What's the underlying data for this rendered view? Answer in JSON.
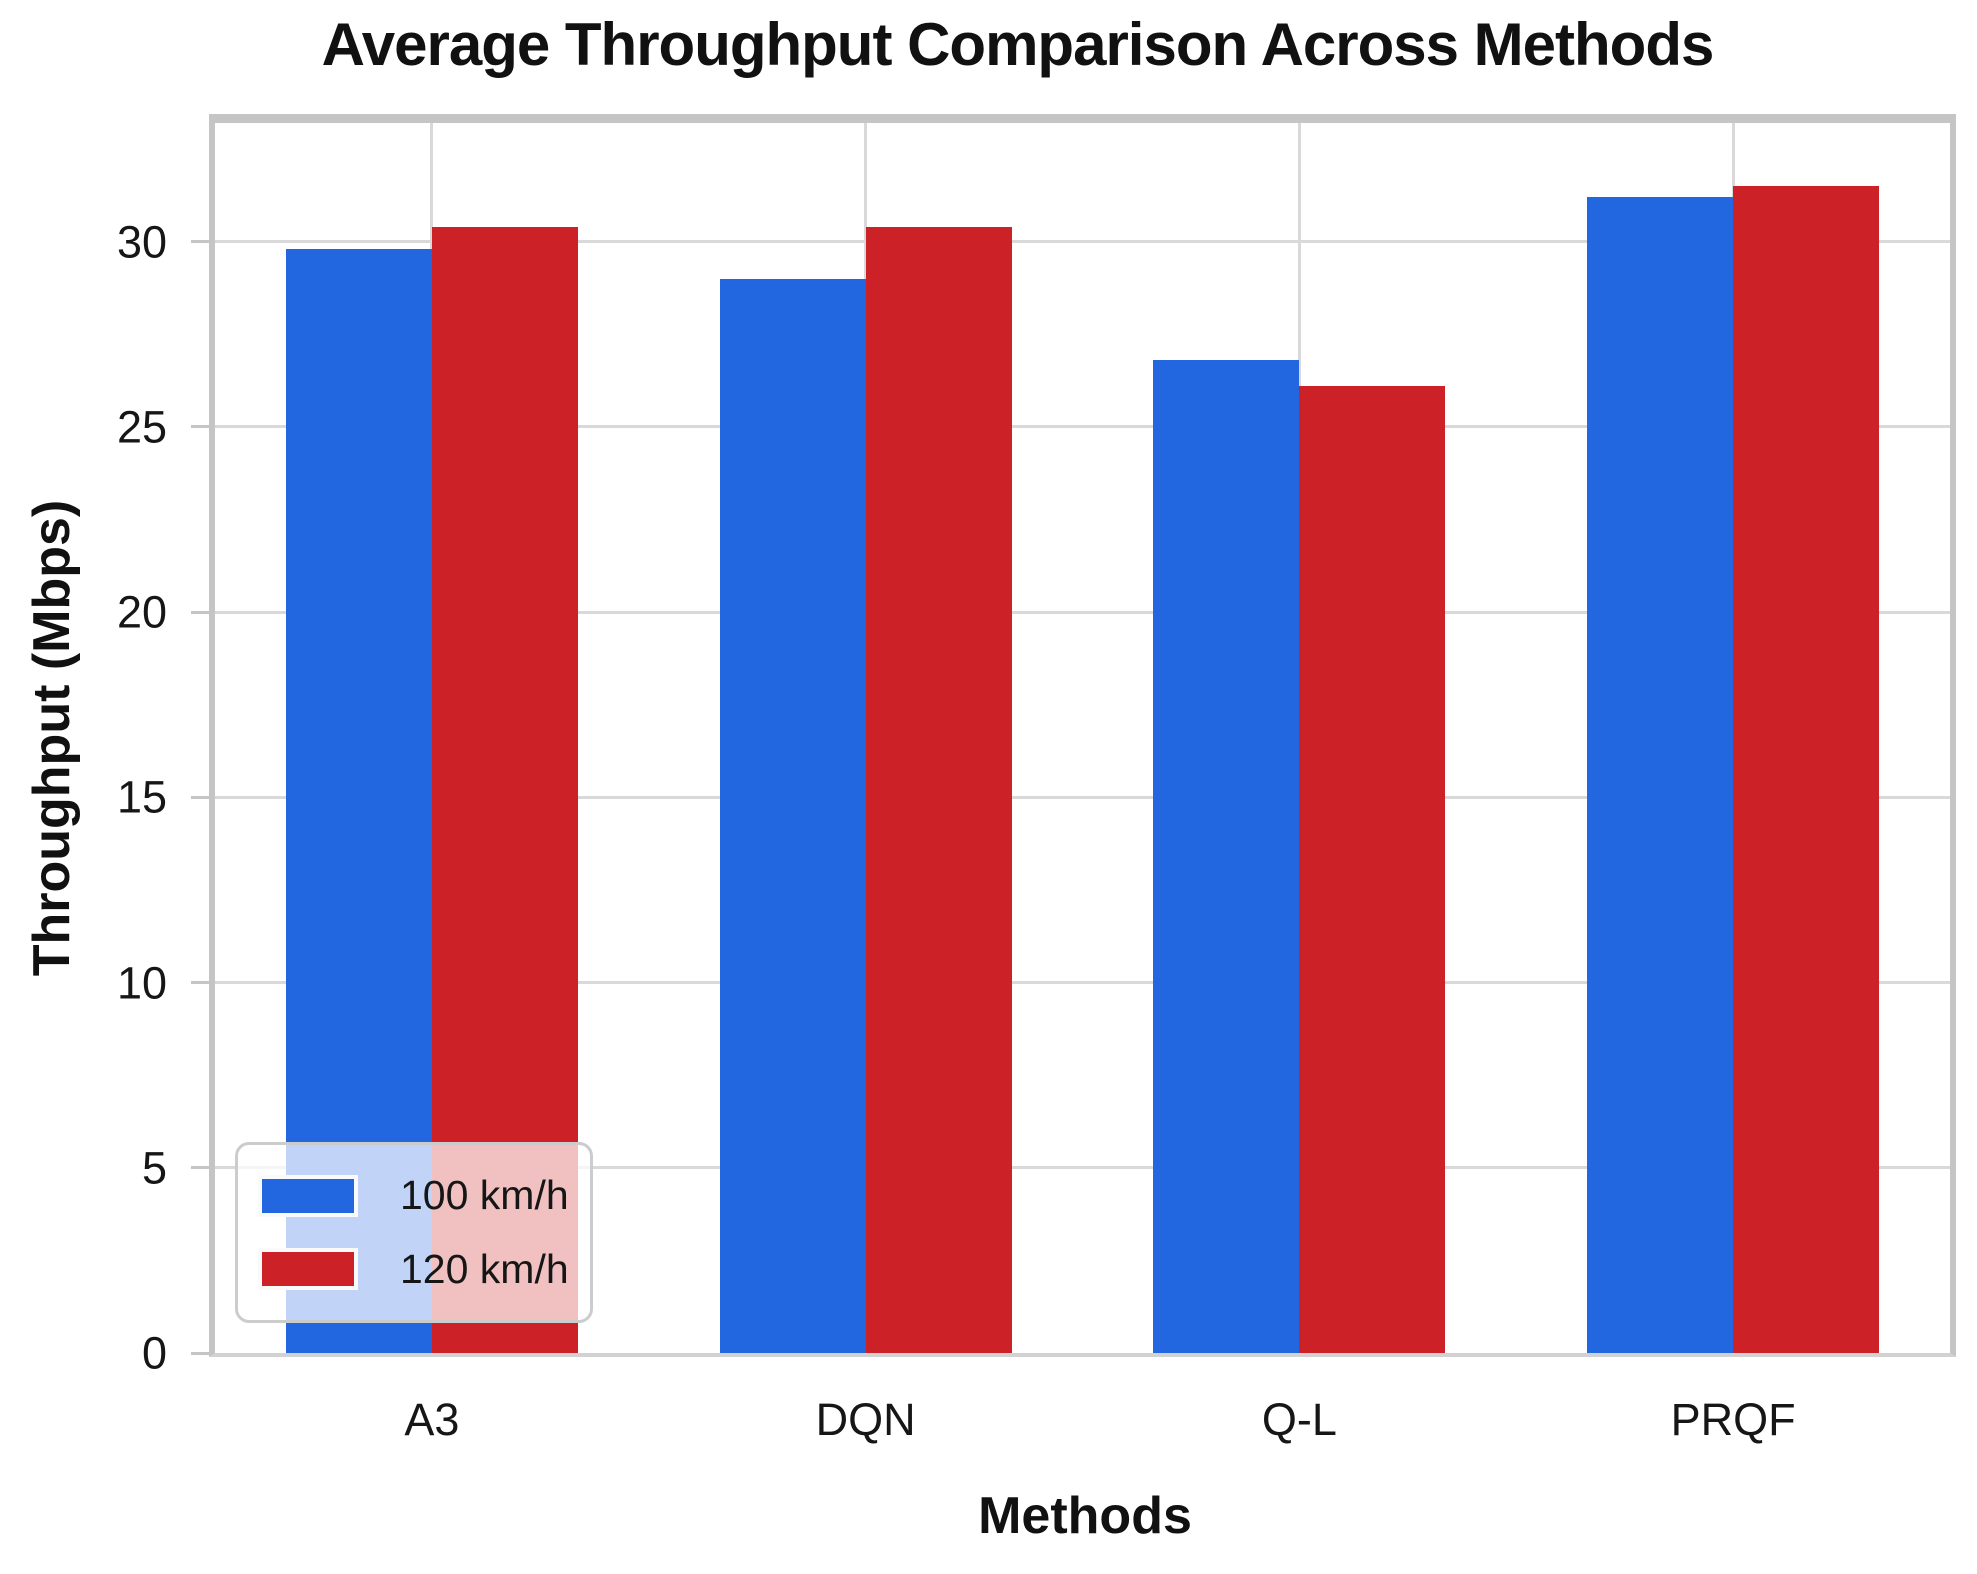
{
  "chart_data": {
    "type": "bar",
    "title": "Average Throughput Comparison Across Methods",
    "xlabel": "Methods",
    "ylabel": "Throughput (Mbps)",
    "categories": [
      "A3",
      "DQN",
      "Q-L",
      "PRQF"
    ],
    "series": [
      {
        "name": "100 km/h",
        "color": "#2267e0",
        "values": [
          29.8,
          29.0,
          26.8,
          31.2
        ]
      },
      {
        "name": "120 km/h",
        "color": "#cc2127",
        "values": [
          30.4,
          30.4,
          26.1,
          31.5
        ]
      }
    ],
    "ylim": [
      0,
      33.2
    ],
    "yticks": [
      0,
      5,
      10,
      15,
      20,
      25,
      30
    ],
    "grid": true,
    "legend_position": "lower left",
    "colors": {
      "grid": "#d9d9d9",
      "frame": "#c5c5c5",
      "text": "#161616"
    }
  }
}
